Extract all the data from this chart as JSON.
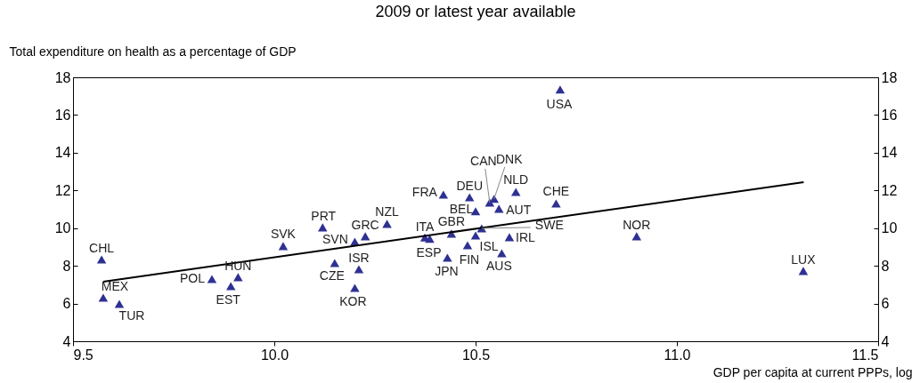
{
  "chart_data": {
    "type": "scatter",
    "title": "2009 or latest year available",
    "xlabel": "GDP per capita at current PPPs, log",
    "ylabel": "Total expenditure on health as a percentage of GDP",
    "xlim": [
      9.5,
      11.5
    ],
    "xticks": [
      9.5,
      {
        "value": 10,
        "label": "10.0"
      },
      10.5,
      {
        "value": 11,
        "label": "11.0"
      },
      11.5
    ],
    "ylim": [
      4,
      18
    ],
    "yticks": [
      4,
      6,
      8,
      10,
      12,
      14,
      16,
      18
    ],
    "y2lim": [
      4,
      18
    ],
    "y2ticks": [
      4,
      6,
      8,
      10,
      12,
      14,
      16,
      18
    ],
    "grid": false,
    "series": [
      {
        "color": "#2e3192",
        "marker": "triangle",
        "x": [
          9.571,
          9.575,
          9.615,
          9.845,
          9.892,
          9.91,
          10.022,
          10.12,
          10.2,
          10.15,
          10.21,
          10.2,
          10.226,
          10.28,
          10.374,
          10.386,
          10.44,
          10.43,
          10.48,
          10.5,
          10.515,
          10.584,
          10.565,
          10.5,
          10.558,
          10.535,
          10.546,
          10.485,
          10.42,
          10.6,
          10.7,
          10.71,
          10.9,
          11.314
        ],
        "values": [
          8.34,
          6.31,
          5.98,
          7.3,
          6.92,
          7.4,
          9.05,
          10.04,
          9.28,
          8.15,
          7.82,
          6.83,
          9.57,
          10.23,
          9.5,
          9.44,
          9.71,
          8.43,
          9.09,
          9.61,
          9.99,
          9.52,
          8.67,
          10.89,
          11.03,
          11.36,
          11.55,
          11.64,
          11.78,
          11.92,
          11.31,
          17.35,
          9.57,
          7.73
        ]
      },
      {
        "type": "line",
        "color": "#000000",
        "x": [
          9.575,
          11.315
        ],
        "values": [
          7.16,
          12.44
        ]
      }
    ],
    "annotations": [
      {
        "text": "CHL",
        "x": 9.571,
        "y": 8.34
      },
      {
        "text": "MEX",
        "x": 9.575,
        "y": 6.31
      },
      {
        "text": "TUR",
        "x": 9.615,
        "y": 5.98
      },
      {
        "text": "POL",
        "x": 9.845,
        "y": 7.3
      },
      {
        "text": "EST",
        "x": 9.892,
        "y": 6.92
      },
      {
        "text": "HUN",
        "x": 9.91,
        "y": 7.4
      },
      {
        "text": "SVK",
        "x": 10.022,
        "y": 9.05
      },
      {
        "text": "PRT",
        "x": 10.12,
        "y": 10.04
      },
      {
        "text": "SVN",
        "x": 10.2,
        "y": 9.28
      },
      {
        "text": "CZE",
        "x": 10.15,
        "y": 8.15
      },
      {
        "text": "ISR",
        "x": 10.21,
        "y": 7.82
      },
      {
        "text": "KOR",
        "x": 10.2,
        "y": 6.83
      },
      {
        "text": "GRC",
        "x": 10.226,
        "y": 9.57
      },
      {
        "text": "NZL",
        "x": 10.28,
        "y": 10.23
      },
      {
        "text": "ITA",
        "x": 10.374,
        "y": 9.5
      },
      {
        "text": "ESP",
        "x": 10.386,
        "y": 9.44
      },
      {
        "text": "GBR",
        "x": 10.44,
        "y": 9.71
      },
      {
        "text": "JPN",
        "x": 10.43,
        "y": 8.43
      },
      {
        "text": "FIN",
        "x": 10.48,
        "y": 9.09
      },
      {
        "text": "ISL",
        "x": 10.5,
        "y": 9.61
      },
      {
        "text": "SWE",
        "x": 10.515,
        "y": 9.99
      },
      {
        "text": "IRL",
        "x": 10.584,
        "y": 9.52
      },
      {
        "text": "AUS",
        "x": 10.565,
        "y": 8.67
      },
      {
        "text": "BEL",
        "x": 10.5,
        "y": 10.89
      },
      {
        "text": "AUT",
        "x": 10.558,
        "y": 11.03
      },
      {
        "text": "CAN",
        "x": 10.535,
        "y": 11.36
      },
      {
        "text": "DNK",
        "x": 10.546,
        "y": 11.55
      },
      {
        "text": "DEU",
        "x": 10.485,
        "y": 11.64
      },
      {
        "text": "FRA",
        "x": 10.42,
        "y": 11.78
      },
      {
        "text": "NLD",
        "x": 10.6,
        "y": 11.92
      },
      {
        "text": "CHE",
        "x": 10.7,
        "y": 11.31
      },
      {
        "text": "USA",
        "x": 10.71,
        "y": 17.35
      },
      {
        "text": "NOR",
        "x": 10.9,
        "y": 9.57
      },
      {
        "text": "LUX",
        "x": 11.314,
        "y": 7.73
      }
    ]
  }
}
